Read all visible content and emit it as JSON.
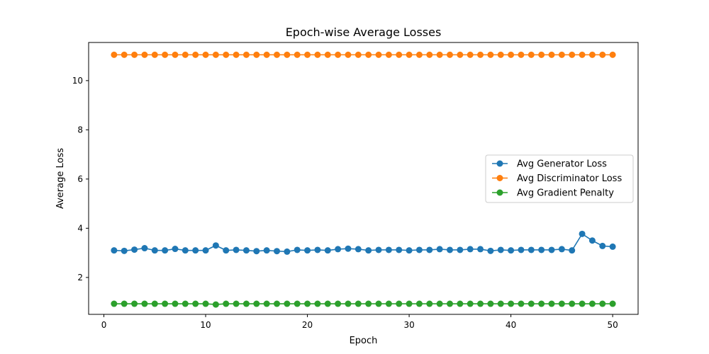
{
  "chart_data": {
    "type": "line",
    "title": "Epoch-wise Average Losses",
    "xlabel": "Epoch",
    "ylabel": "Average Loss",
    "xlim": [
      -1.5,
      52.5
    ],
    "ylim": [
      0.5,
      11.55
    ],
    "xticks": [
      0,
      10,
      20,
      30,
      40,
      50
    ],
    "yticks": [
      2,
      4,
      6,
      8,
      10
    ],
    "grid": false,
    "legend_position": "center-right",
    "x": [
      1,
      2,
      3,
      4,
      5,
      6,
      7,
      8,
      9,
      10,
      11,
      12,
      13,
      14,
      15,
      16,
      17,
      18,
      19,
      20,
      21,
      22,
      23,
      24,
      25,
      26,
      27,
      28,
      29,
      30,
      31,
      32,
      33,
      34,
      35,
      36,
      37,
      38,
      39,
      40,
      41,
      42,
      43,
      44,
      45,
      46,
      47,
      48,
      49,
      50
    ],
    "series": [
      {
        "name": "Avg Generator Loss",
        "color": "#1f77b4",
        "values": [
          3.1,
          3.08,
          3.13,
          3.19,
          3.1,
          3.1,
          3.16,
          3.1,
          3.1,
          3.1,
          3.3,
          3.1,
          3.12,
          3.1,
          3.07,
          3.1,
          3.07,
          3.05,
          3.12,
          3.1,
          3.12,
          3.1,
          3.15,
          3.17,
          3.15,
          3.1,
          3.12,
          3.12,
          3.12,
          3.1,
          3.12,
          3.12,
          3.15,
          3.12,
          3.12,
          3.15,
          3.15,
          3.08,
          3.12,
          3.1,
          3.12,
          3.12,
          3.12,
          3.12,
          3.15,
          3.1,
          3.77,
          3.5,
          3.28,
          3.25
        ]
      },
      {
        "name": "Avg Discriminator Loss",
        "color": "#ff7f0e",
        "values": [
          11.05,
          11.05,
          11.05,
          11.05,
          11.05,
          11.05,
          11.05,
          11.05,
          11.05,
          11.05,
          11.05,
          11.05,
          11.05,
          11.05,
          11.05,
          11.05,
          11.05,
          11.05,
          11.05,
          11.05,
          11.05,
          11.05,
          11.05,
          11.05,
          11.05,
          11.05,
          11.05,
          11.05,
          11.05,
          11.05,
          11.05,
          11.05,
          11.05,
          11.05,
          11.05,
          11.05,
          11.05,
          11.05,
          11.05,
          11.05,
          11.05,
          11.05,
          11.05,
          11.05,
          11.05,
          11.05,
          11.05,
          11.05,
          11.05,
          11.05
        ]
      },
      {
        "name": "Avg Gradient Penalty",
        "color": "#2ca02c",
        "values": [
          0.93,
          0.93,
          0.93,
          0.93,
          0.93,
          0.93,
          0.93,
          0.93,
          0.93,
          0.93,
          0.9,
          0.93,
          0.93,
          0.93,
          0.93,
          0.93,
          0.93,
          0.93,
          0.93,
          0.93,
          0.93,
          0.93,
          0.93,
          0.93,
          0.93,
          0.93,
          0.93,
          0.93,
          0.93,
          0.93,
          0.93,
          0.93,
          0.93,
          0.93,
          0.93,
          0.93,
          0.93,
          0.93,
          0.93,
          0.93,
          0.93,
          0.93,
          0.93,
          0.93,
          0.93,
          0.93,
          0.93,
          0.93,
          0.93,
          0.93
        ]
      }
    ]
  }
}
